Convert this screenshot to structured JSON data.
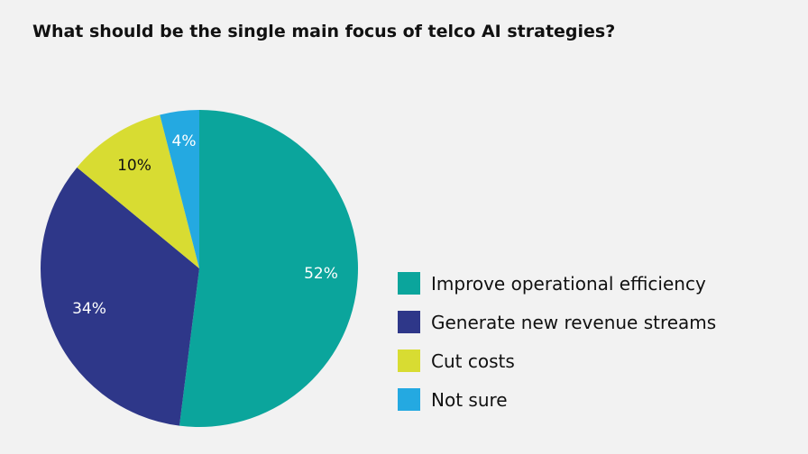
{
  "title": "What should be the single main focus of telco AI strategies?",
  "chart_data": {
    "type": "pie",
    "title": "What should be the single main focus of telco AI strategies?",
    "categories": [
      "Improve operational efficiency",
      "Generate new revenue streams",
      "Cut costs",
      "Not sure"
    ],
    "values": [
      52,
      34,
      10,
      4
    ],
    "labels": [
      "52%",
      "34%",
      "10%",
      "4%"
    ],
    "colors": [
      "#0ba59c",
      "#2e3789",
      "#d8dc32",
      "#24a9e1"
    ],
    "label_colors": [
      "#ffffff",
      "#ffffff",
      "#111111",
      "#ffffff"
    ],
    "start_angle": "12 o'clock",
    "direction": "clockwise",
    "legend_position": "right"
  },
  "legend": [
    {
      "label": "Improve operational efficiency",
      "color": "#0ba59c"
    },
    {
      "label": "Generate new revenue streams",
      "color": "#2e3789"
    },
    {
      "label": "Cut costs",
      "color": "#d8dc32"
    },
    {
      "label": "Not sure",
      "color": "#24a9e1"
    }
  ]
}
